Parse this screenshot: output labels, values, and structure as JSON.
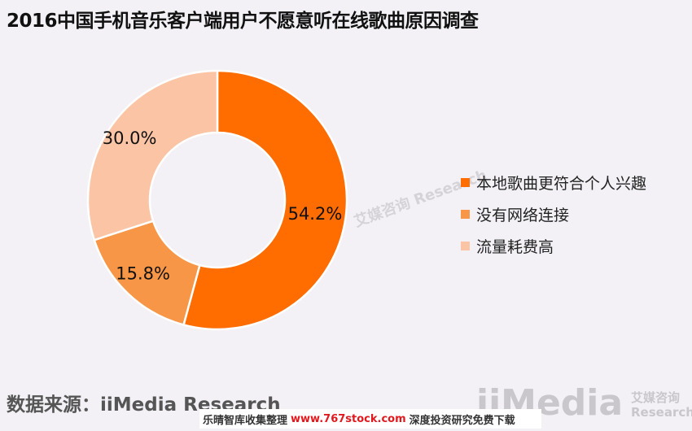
{
  "title": "2016中国手机音乐客户端用户不愿意听在线歌曲原因调查",
  "source_label": "数据来源：iiMedia Research",
  "footer": {
    "prefix": "乐晴智库收集整理",
    "url": "www.767stock.com",
    "suffix": "深度投资研究免费下载"
  },
  "watermark": {
    "brand": "iiMedia",
    "cn": "艾媒咨询",
    "en": "Research"
  },
  "chart_data": {
    "type": "pie",
    "donut": true,
    "categories": [
      "本地歌曲更符合个人兴趣",
      "没有网络连接",
      "流量耗费高"
    ],
    "values": [
      54.2,
      15.8,
      30.0
    ],
    "labels": [
      "54.2%",
      "15.8%",
      "30.0%"
    ],
    "colors": [
      "#ff6c00",
      "#f79646",
      "#fac4a5"
    ],
    "legend_position": "right"
  }
}
